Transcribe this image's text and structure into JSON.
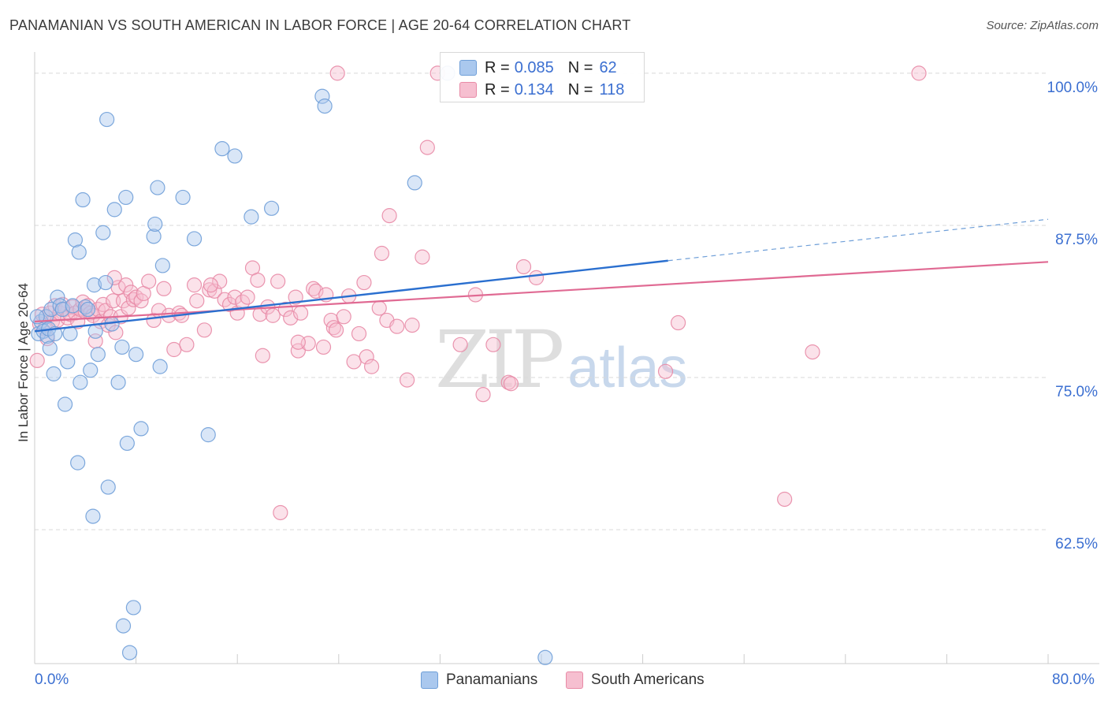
{
  "title": "PANAMANIAN VS SOUTH AMERICAN IN LABOR FORCE | AGE 20-64 CORRELATION CHART",
  "source": "Source: ZipAtlas.com",
  "watermark": {
    "zip": "ZIP",
    "atlas": "atlas"
  },
  "legend": {
    "rows": [
      {
        "r_label": "R =",
        "r_value": "0.085",
        "n_label": "N =",
        "n_value": "62"
      },
      {
        "r_label": "R =",
        "r_value": "0.134",
        "n_label": "N =",
        "n_value": "118"
      }
    ]
  },
  "bottom_legend": [
    "Panamanians",
    "South Americans"
  ],
  "colors": {
    "blue_fill": "#aac8ee",
    "blue_stroke": "#6f9fd8",
    "blue_line": "#2a6fcf",
    "pink_fill": "#f6bfd0",
    "pink_stroke": "#e88aa6",
    "pink_line": "#e06a93",
    "tick_label": "#3b6fd1",
    "grid": "#d9d9d9"
  },
  "chart_data": {
    "type": "scatter",
    "title": "PANAMANIAN VS SOUTH AMERICAN IN LABOR FORCE | AGE 20-64 CORRELATION CHART",
    "xlabel": "",
    "ylabel": "In Labor Force | Age 20-64",
    "xlim": [
      0,
      80
    ],
    "ylim": [
      51.5,
      102
    ],
    "x_tick_labels": [
      {
        "value": 0,
        "label": "0.0%"
      },
      {
        "value": 80,
        "label": "80.0%"
      }
    ],
    "y_tick_labels": [
      {
        "value": 100,
        "label": "100.0%"
      },
      {
        "value": 87.5,
        "label": "87.5%"
      },
      {
        "value": 75,
        "label": "75.0%"
      },
      {
        "value": 62.5,
        "label": "62.5%"
      }
    ],
    "grid": "dashed horizontal",
    "legend_placement": "top-center",
    "series": [
      {
        "name": "Panamanians",
        "r": 0.085,
        "n": 62,
        "trend": {
          "x": [
            0,
            50
          ],
          "y": [
            78.8,
            84.6
          ],
          "dashed_extension": {
            "x": [
              50,
              80
            ],
            "y": [
              84.6,
              88.0
            ]
          }
        },
        "points": [
          [
            0.3,
            78.6
          ],
          [
            0.5,
            79.6
          ],
          [
            0.7,
            78.8
          ],
          [
            0.9,
            80.0
          ],
          [
            1.0,
            78.4
          ],
          [
            1.1,
            79.0
          ],
          [
            1.2,
            77.4
          ],
          [
            1.3,
            80.6
          ],
          [
            1.5,
            75.3
          ],
          [
            1.6,
            78.6
          ],
          [
            1.8,
            81.6
          ],
          [
            2.0,
            80.9
          ],
          [
            2.2,
            80.6
          ],
          [
            2.4,
            72.8
          ],
          [
            2.6,
            76.3
          ],
          [
            2.8,
            78.6
          ],
          [
            3.0,
            80.9
          ],
          [
            3.2,
            86.3
          ],
          [
            3.4,
            68.0
          ],
          [
            3.5,
            85.3
          ],
          [
            3.6,
            74.6
          ],
          [
            3.8,
            89.6
          ],
          [
            4.0,
            80.8
          ],
          [
            4.2,
            80.6
          ],
          [
            4.4,
            75.6
          ],
          [
            4.6,
            63.6
          ],
          [
            4.7,
            82.6
          ],
          [
            4.8,
            78.8
          ],
          [
            5.0,
            76.9
          ],
          [
            5.4,
            86.9
          ],
          [
            5.6,
            82.8
          ],
          [
            5.7,
            96.2
          ],
          [
            5.8,
            66.0
          ],
          [
            6.1,
            79.4
          ],
          [
            6.3,
            88.8
          ],
          [
            6.6,
            74.6
          ],
          [
            6.9,
            77.5
          ],
          [
            7.2,
            89.8
          ],
          [
            7.3,
            69.6
          ],
          [
            7.5,
            52.4
          ],
          [
            7.8,
            56.1
          ],
          [
            7.0,
            54.6
          ],
          [
            8.0,
            76.9
          ],
          [
            8.4,
            70.8
          ],
          [
            9.4,
            86.6
          ],
          [
            9.5,
            87.6
          ],
          [
            9.7,
            90.6
          ],
          [
            9.9,
            75.9
          ],
          [
            10.1,
            84.2
          ],
          [
            11.7,
            89.8
          ],
          [
            12.6,
            86.4
          ],
          [
            13.7,
            70.3
          ],
          [
            14.8,
            93.8
          ],
          [
            15.8,
            93.2
          ],
          [
            17.1,
            88.2
          ],
          [
            18.7,
            88.9
          ],
          [
            22.7,
            98.1
          ],
          [
            22.9,
            97.3
          ],
          [
            30.0,
            91.0
          ],
          [
            32.6,
            100.0
          ],
          [
            40.3,
            52.0
          ],
          [
            0.2,
            80.0
          ]
        ]
      },
      {
        "name": "South Americans",
        "r": 0.134,
        "n": 118,
        "trend": {
          "x": [
            0,
            80
          ],
          "y": [
            79.6,
            84.5
          ]
        },
        "points": [
          [
            0.2,
            76.4
          ],
          [
            0.4,
            79.4
          ],
          [
            0.6,
            80.2
          ],
          [
            0.8,
            79.0
          ],
          [
            1.0,
            78.2
          ],
          [
            1.2,
            80.3
          ],
          [
            1.4,
            79.6
          ],
          [
            1.6,
            80.9
          ],
          [
            1.8,
            79.7
          ],
          [
            2.0,
            80.3
          ],
          [
            2.2,
            81.0
          ],
          [
            2.4,
            80.6
          ],
          [
            2.6,
            79.9
          ],
          [
            2.8,
            80.2
          ],
          [
            3.0,
            80.8
          ],
          [
            3.2,
            80.3
          ],
          [
            3.4,
            79.6
          ],
          [
            3.6,
            80.6
          ],
          [
            3.8,
            81.2
          ],
          [
            4.0,
            80.4
          ],
          [
            4.2,
            80.9
          ],
          [
            4.4,
            80.3
          ],
          [
            4.6,
            80.1
          ],
          [
            4.8,
            78.0
          ],
          [
            5.0,
            80.6
          ],
          [
            5.2,
            79.6
          ],
          [
            5.4,
            81.0
          ],
          [
            5.6,
            80.5
          ],
          [
            5.8,
            79.3
          ],
          [
            6.0,
            80.0
          ],
          [
            6.2,
            81.3
          ],
          [
            6.4,
            78.7
          ],
          [
            6.6,
            82.4
          ],
          [
            6.8,
            80.0
          ],
          [
            7.0,
            81.3
          ],
          [
            7.2,
            82.6
          ],
          [
            7.4,
            80.7
          ],
          [
            7.6,
            82.0
          ],
          [
            7.8,
            81.4
          ],
          [
            8.0,
            81.6
          ],
          [
            8.4,
            81.3
          ],
          [
            8.6,
            81.9
          ],
          [
            9.0,
            82.9
          ],
          [
            9.4,
            79.7
          ],
          [
            9.8,
            80.5
          ],
          [
            10.2,
            82.3
          ],
          [
            10.6,
            80.1
          ],
          [
            11.0,
            77.3
          ],
          [
            11.4,
            80.3
          ],
          [
            11.6,
            80.1
          ],
          [
            12.0,
            77.7
          ],
          [
            12.6,
            82.6
          ],
          [
            12.8,
            81.3
          ],
          [
            13.4,
            78.9
          ],
          [
            13.8,
            82.2
          ],
          [
            14.2,
            82.1
          ],
          [
            14.6,
            82.9
          ],
          [
            15.0,
            81.4
          ],
          [
            15.4,
            81.0
          ],
          [
            15.8,
            81.6
          ],
          [
            16.0,
            80.3
          ],
          [
            16.4,
            81.2
          ],
          [
            16.8,
            81.6
          ],
          [
            17.2,
            84.0
          ],
          [
            17.6,
            83.0
          ],
          [
            17.8,
            80.2
          ],
          [
            18.0,
            76.8
          ],
          [
            18.4,
            80.8
          ],
          [
            18.8,
            80.1
          ],
          [
            19.2,
            82.9
          ],
          [
            19.4,
            63.9
          ],
          [
            19.8,
            80.6
          ],
          [
            20.2,
            79.9
          ],
          [
            20.6,
            81.6
          ],
          [
            20.8,
            77.2
          ],
          [
            21.0,
            80.3
          ],
          [
            21.6,
            77.8
          ],
          [
            22.0,
            82.3
          ],
          [
            22.2,
            82.1
          ],
          [
            22.8,
            77.5
          ],
          [
            23.0,
            81.8
          ],
          [
            23.4,
            79.7
          ],
          [
            23.6,
            79.1
          ],
          [
            23.8,
            78.9
          ],
          [
            24.4,
            80.0
          ],
          [
            24.8,
            81.7
          ],
          [
            25.2,
            76.3
          ],
          [
            25.6,
            78.6
          ],
          [
            26.0,
            82.8
          ],
          [
            26.2,
            76.7
          ],
          [
            26.6,
            75.9
          ],
          [
            27.2,
            80.7
          ],
          [
            27.4,
            85.2
          ],
          [
            27.8,
            79.7
          ],
          [
            28.0,
            88.3
          ],
          [
            28.6,
            79.2
          ],
          [
            29.4,
            74.8
          ],
          [
            29.8,
            79.3
          ],
          [
            30.6,
            84.9
          ],
          [
            31.0,
            93.9
          ],
          [
            31.8,
            100.0
          ],
          [
            33.6,
            77.7
          ],
          [
            34.8,
            81.8
          ],
          [
            35.4,
            73.6
          ],
          [
            36.2,
            77.7
          ],
          [
            37.4,
            74.6
          ],
          [
            37.6,
            74.5
          ],
          [
            38.6,
            84.1
          ],
          [
            39.6,
            83.2
          ],
          [
            49.8,
            75.5
          ],
          [
            50.8,
            79.5
          ],
          [
            23.9,
            100.0
          ],
          [
            59.2,
            65.0
          ],
          [
            61.4,
            77.1
          ],
          [
            69.8,
            100.0
          ],
          [
            20.8,
            77.9
          ],
          [
            13.9,
            82.6
          ],
          [
            6.3,
            83.2
          ]
        ]
      }
    ]
  }
}
